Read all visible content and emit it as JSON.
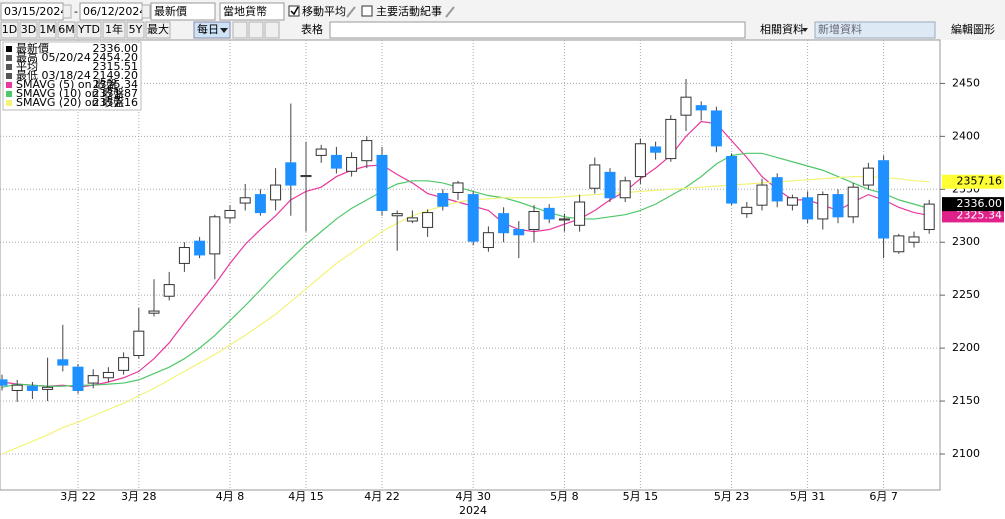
{
  "toolbar": {
    "start_date": "03/15/2024",
    "date_separator": "-",
    "end_date": "06/12/2024",
    "price_field": "最新價",
    "currency": "當地貨幣",
    "moving_avg": "移動平均",
    "events": "主要活動紀事",
    "ranges": [
      "1D",
      "3D",
      "1M",
      "6M",
      "YTD",
      "1年",
      "5Y",
      "最大"
    ],
    "frequency": "每日",
    "table": "表格",
    "related": "相關資料",
    "add_data": "新增資料",
    "edit": "編輯圖形"
  },
  "chart_data": {
    "type": "candlestick",
    "x_label": "2024",
    "categories": [
      null,
      null,
      null,
      null,
      null,
      "3月 22",
      null,
      null,
      null,
      "3月 28",
      null,
      null,
      null,
      null,
      null,
      "4月 8",
      null,
      null,
      null,
      null,
      "4月 15",
      null,
      null,
      null,
      null,
      "4月 22",
      null,
      null,
      null,
      null,
      null,
      "4月 30",
      null,
      null,
      null,
      null,
      null,
      "5月 8",
      null,
      null,
      null,
      null,
      "5月 15",
      null,
      null,
      null,
      null,
      null,
      "5月 23",
      null,
      null,
      null,
      null,
      "5月 31",
      null,
      null,
      null,
      null,
      "6月 7",
      null,
      null,
      null
    ],
    "open": [
      2170,
      2160,
      2164,
      2161,
      2189,
      2182,
      2167,
      2172,
      2179,
      2193,
      2233,
      2249,
      2280,
      2301,
      2289,
      2323,
      2337,
      2345,
      2340,
      2375,
      2362,
      2382,
      2382,
      2367,
      2377,
      2382,
      2325,
      2320,
      2314,
      2346,
      2347,
      2345,
      2295,
      2327,
      2312,
      2312,
      2332,
      2321,
      2316,
      2351,
      2366,
      2342,
      2362,
      2390,
      2379,
      2420,
      2429,
      2424,
      2381,
      2327,
      2335,
      2361,
      2335,
      2342,
      2322,
      2345,
      2324,
      2354,
      2377,
      2291,
      2300,
      2312
    ],
    "high": [
      2175,
      2170,
      2168,
      2191,
      2222,
      2185,
      2180,
      2182,
      2196,
      2238,
      2265,
      2272,
      2300,
      2305,
      2326,
      2335,
      2355,
      2350,
      2370,
      2431,
      2395,
      2392,
      2390,
      2385,
      2400,
      2390,
      2330,
      2330,
      2331,
      2350,
      2358,
      2348,
      2315,
      2333,
      2320,
      2335,
      2336,
      2327,
      2345,
      2380,
      2370,
      2362,
      2398,
      2395,
      2420,
      2454.2,
      2433,
      2428,
      2384,
      2338,
      2360,
      2365,
      2345,
      2348,
      2348,
      2350,
      2356,
      2375,
      2382,
      2308,
      2310,
      2340
    ],
    "low": [
      2160,
      2149.2,
      2152,
      2150,
      2178,
      2157,
      2162,
      2168,
      2175,
      2190,
      2230,
      2245,
      2272,
      2285,
      2265,
      2318,
      2330,
      2325,
      2330,
      2325,
      2310,
      2375,
      2365,
      2362,
      2370,
      2325,
      2292,
      2318,
      2305,
      2330,
      2340,
      2297,
      2291,
      2300,
      2285,
      2300,
      2318,
      2310,
      2310,
      2346,
      2338,
      2338,
      2355,
      2378,
      2376,
      2405,
      2415,
      2385,
      2335,
      2323,
      2330,
      2333,
      2330,
      2318,
      2312,
      2318,
      2318,
      2350,
      2285,
      2289,
      2295,
      2308
    ],
    "close": [
      2165,
      2165,
      2160,
      2163,
      2184,
      2160,
      2174,
      2177,
      2191,
      2216,
      2235,
      2260,
      2295,
      2288,
      2324,
      2330,
      2342,
      2328,
      2354,
      2354,
      2363,
      2388,
      2370,
      2380,
      2396,
      2330,
      2327,
      2323,
      2328,
      2334,
      2356,
      2301,
      2309,
      2309,
      2307,
      2329,
      2322,
      2322,
      2338,
      2373,
      2342,
      2358,
      2393,
      2385,
      2416,
      2437,
      2425,
      2391,
      2337,
      2333,
      2354,
      2339,
      2342,
      2322,
      2345,
      2324,
      2352,
      2370,
      2304,
      2306,
      2305,
      2336
    ],
    "up_color": "#ffffff",
    "down_color": "#1e90ff",
    "legend": [
      {
        "label": "最新價",
        "value": "2336.00"
      },
      {
        "label": "最高 05/20/24",
        "value": "2454.20"
      },
      {
        "label": "平均",
        "value": "2315.51"
      },
      {
        "label": "最低 03/18/24",
        "value": "2149.20"
      }
    ],
    "series": [
      {
        "name": "SMAVG (5) on 收盤",
        "color": "#e8399e",
        "values": [
          2168,
          2166,
          2165,
          2164,
          2165,
          2163,
          2165,
          2168,
          2172,
          2178,
          2190,
          2205,
          2224,
          2242,
          2260,
          2280,
          2298,
          2312,
          2325,
          2340,
          2348,
          2352,
          2362,
          2368,
          2372,
          2373,
          2364,
          2356,
          2346,
          2342,
          2338,
          2334,
          2330,
          2318,
          2312,
          2310,
          2312,
          2317,
          2322,
          2330,
          2340,
          2348,
          2360,
          2370,
          2382,
          2400,
          2414,
          2412,
          2396,
          2380,
          2362,
          2350,
          2340,
          2340,
          2335,
          2330,
          2338,
          2345,
          2340,
          2333,
          2328,
          2325.34
        ]
      },
      {
        "name": "SMAVG (10) on 收盤",
        "color": "#4fc86a",
        "values": [
          2163,
          2166,
          2165,
          2164,
          2164,
          2165,
          2165,
          2166,
          2167,
          2170,
          2176,
          2182,
          2190,
          2200,
          2212,
          2226,
          2240,
          2255,
          2270,
          2284,
          2298,
          2310,
          2322,
          2332,
          2340,
          2348,
          2355,
          2358,
          2358,
          2356,
          2352,
          2348,
          2344,
          2342,
          2338,
          2333,
          2328,
          2324,
          2322,
          2322,
          2324,
          2326,
          2330,
          2336,
          2344,
          2352,
          2362,
          2374,
          2382,
          2384,
          2384,
          2380,
          2376,
          2372,
          2368,
          2362,
          2356,
          2350,
          2346,
          2340,
          2336,
          2331.87
        ]
      },
      {
        "name": "SMAVG (20) on 收盤",
        "color": "#f3f37a",
        "values": [
          2100,
          2106,
          2112,
          2118,
          2125,
          2130,
          2136,
          2142,
          2148,
          2155,
          2162,
          2170,
          2178,
          2186,
          2194,
          2203,
          2212,
          2222,
          2232,
          2244,
          2256,
          2268,
          2280,
          2290,
          2300,
          2310,
          2318,
          2325,
          2330,
          2334,
          2338,
          2340,
          2341,
          2342,
          2342,
          2342,
          2342,
          2343,
          2344,
          2345,
          2346,
          2347,
          2348,
          2349,
          2350,
          2351,
          2352,
          2353,
          2354,
          2355,
          2356,
          2357,
          2358,
          2359,
          2360,
          2361,
          2362,
          2362,
          2361,
          2360,
          2358,
          2357.16
        ]
      }
    ],
    "ylim": [
      2066,
      2491
    ],
    "yticks": [
      2100,
      2150,
      2200,
      2250,
      2300,
      2350,
      2400,
      2450
    ],
    "grid": true
  }
}
